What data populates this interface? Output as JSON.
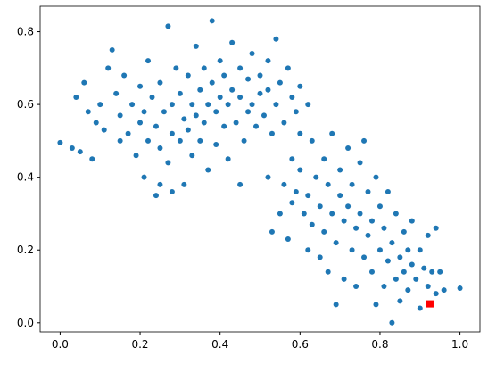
{
  "chart_data": {
    "type": "scatter",
    "xlim": [
      -0.05,
      1.05
    ],
    "ylim": [
      -0.025,
      0.87
    ],
    "xticks": [
      {
        "value": 0,
        "label": "0.0"
      },
      0.2,
      0.4,
      0.6,
      0.8,
      {
        "value": 1,
        "label": "1.0"
      }
    ],
    "yticks": [
      {
        "value": 0,
        "label": "0.0"
      },
      0.2,
      0.4,
      0.6,
      0.8
    ],
    "grid": false,
    "series": [
      {
        "color": "#1f77b4",
        "marker": "circle",
        "x": [
          0.0,
          0.03,
          0.05,
          0.04,
          0.06,
          0.07,
          0.08,
          0.09,
          0.1,
          0.11,
          0.12,
          0.13,
          0.14,
          0.15,
          0.15,
          0.16,
          0.17,
          0.18,
          0.19,
          0.2,
          0.2,
          0.21,
          0.21,
          0.22,
          0.22,
          0.23,
          0.24,
          0.24,
          0.25,
          0.25,
          0.26,
          0.27,
          0.27,
          0.28,
          0.28,
          0.29,
          0.3,
          0.3,
          0.31,
          0.31,
          0.32,
          0.32,
          0.33,
          0.33,
          0.34,
          0.34,
          0.35,
          0.35,
          0.36,
          0.36,
          0.37,
          0.37,
          0.38,
          0.38,
          0.39,
          0.39,
          0.4,
          0.4,
          0.41,
          0.41,
          0.42,
          0.42,
          0.43,
          0.43,
          0.44,
          0.45,
          0.45,
          0.46,
          0.47,
          0.47,
          0.48,
          0.48,
          0.49,
          0.5,
          0.5,
          0.51,
          0.52,
          0.52,
          0.53,
          0.54,
          0.54,
          0.55,
          0.56,
          0.57,
          0.58,
          0.59,
          0.6,
          0.6,
          0.62,
          0.25,
          0.28,
          0.45,
          0.52,
          0.55,
          0.56,
          0.57,
          0.58,
          0.59,
          0.6,
          0.61,
          0.62,
          0.62,
          0.63,
          0.63,
          0.64,
          0.65,
          0.65,
          0.66,
          0.66,
          0.67,
          0.67,
          0.68,
          0.68,
          0.69,
          0.7,
          0.7,
          0.71,
          0.71,
          0.72,
          0.72,
          0.73,
          0.73,
          0.74,
          0.74,
          0.75,
          0.75,
          0.76,
          0.76,
          0.77,
          0.77,
          0.78,
          0.78,
          0.79,
          0.79,
          0.8,
          0.8,
          0.81,
          0.81,
          0.82,
          0.82,
          0.83,
          0.83,
          0.84,
          0.84,
          0.85,
          0.85,
          0.86,
          0.86,
          0.87,
          0.87,
          0.88,
          0.88,
          0.89,
          0.9,
          0.9,
          0.91,
          0.92,
          0.92,
          0.93,
          0.94,
          0.94,
          0.95,
          0.96,
          1.0,
          0.53,
          0.58,
          0.69
        ],
        "values": [
          0.495,
          0.48,
          0.47,
          0.62,
          0.66,
          0.58,
          0.45,
          0.55,
          0.6,
          0.53,
          0.7,
          0.75,
          0.63,
          0.5,
          0.57,
          0.68,
          0.52,
          0.6,
          0.46,
          0.55,
          0.65,
          0.4,
          0.58,
          0.5,
          0.72,
          0.62,
          0.35,
          0.54,
          0.48,
          0.66,
          0.58,
          0.815,
          0.44,
          0.6,
          0.52,
          0.7,
          0.5,
          0.63,
          0.56,
          0.38,
          0.68,
          0.53,
          0.6,
          0.46,
          0.76,
          0.57,
          0.64,
          0.5,
          0.7,
          0.55,
          0.6,
          0.42,
          0.83,
          0.66,
          0.58,
          0.49,
          0.72,
          0.62,
          0.54,
          0.68,
          0.6,
          0.45,
          0.77,
          0.64,
          0.55,
          0.7,
          0.62,
          0.5,
          0.67,
          0.58,
          0.74,
          0.6,
          0.54,
          0.68,
          0.63,
          0.57,
          0.72,
          0.64,
          0.52,
          0.78,
          0.6,
          0.66,
          0.55,
          0.7,
          0.62,
          0.58,
          0.65,
          0.52,
          0.6,
          0.38,
          0.36,
          0.38,
          0.4,
          0.3,
          0.38,
          0.23,
          0.45,
          0.36,
          0.42,
          0.3,
          0.35,
          0.2,
          0.5,
          0.27,
          0.4,
          0.32,
          0.18,
          0.45,
          0.25,
          0.38,
          0.14,
          0.3,
          0.52,
          0.22,
          0.35,
          0.42,
          0.28,
          0.12,
          0.48,
          0.32,
          0.2,
          0.38,
          0.26,
          0.1,
          0.44,
          0.3,
          0.18,
          0.5,
          0.24,
          0.36,
          0.14,
          0.28,
          0.05,
          0.4,
          0.2,
          0.32,
          0.1,
          0.26,
          0.17,
          0.36,
          0.0,
          0.22,
          0.12,
          0.3,
          0.18,
          0.06,
          0.25,
          0.14,
          0.2,
          0.09,
          0.16,
          0.28,
          0.12,
          0.2,
          0.04,
          0.15,
          0.1,
          0.24,
          0.14,
          0.08,
          0.26,
          0.14,
          0.09,
          0.095,
          0.25,
          0.33,
          0.05
        ]
      },
      {
        "color": "#ff0000",
        "marker": "square",
        "x": [
          0.925
        ],
        "values": [
          0.052
        ]
      }
    ]
  }
}
